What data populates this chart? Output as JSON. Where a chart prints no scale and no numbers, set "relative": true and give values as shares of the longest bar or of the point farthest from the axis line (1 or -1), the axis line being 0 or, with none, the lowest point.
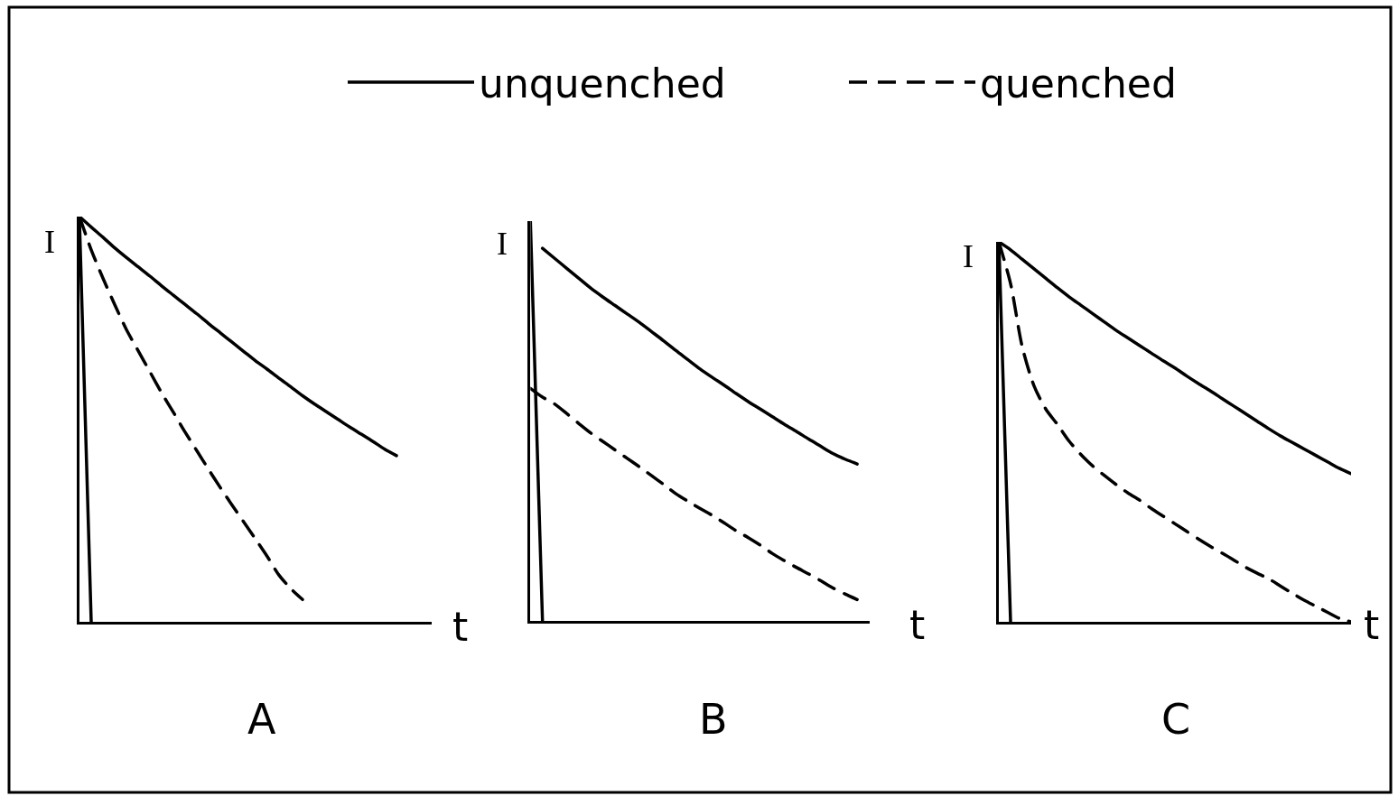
{
  "chart_data": [
    {
      "type": "line",
      "title": "A",
      "xlabel": "t",
      "ylabel": "I",
      "relative": true,
      "legend": "top",
      "categories": [
        null,
        null,
        null,
        null,
        null,
        null,
        null,
        null,
        null,
        null,
        null,
        null,
        null,
        null,
        null,
        null,
        null,
        null,
        null,
        null,
        null,
        null,
        null,
        null,
        null,
        null,
        null,
        null,
        null,
        null,
        null
      ],
      "series": [
        {
          "color": "#000000",
          "values": [
            0.99,
            0,
            null,
            null,
            null,
            null,
            null,
            null,
            null,
            null,
            null,
            null,
            null,
            null,
            null,
            null,
            null,
            null,
            null,
            null,
            null,
            null,
            null,
            null,
            null,
            null,
            null,
            null,
            null,
            null,
            null
          ]
        },
        {
          "name": "unquenched",
          "color": "#000000",
          "values": [
            1.0,
            0.974,
            0.949,
            0.923,
            0.899,
            0.876,
            0.853,
            0.829,
            0.806,
            0.783,
            0.76,
            0.736,
            0.713,
            0.69,
            0.667,
            0.644,
            0.623,
            0.601,
            0.58,
            0.558,
            0.538,
            0.519,
            0.5,
            0.481,
            0.463,
            0.445,
            0.426,
            0.41,
            null,
            null,
            null
          ]
        },
        {
          "name": "quenched",
          "color": "#000000",
          "line_style": "dashed",
          "values": [
            1.0,
            0.918,
            0.848,
            0.783,
            0.721,
            0.669,
            0.617,
            0.565,
            0.517,
            0.468,
            0.422,
            0.376,
            0.331,
            0.288,
            0.246,
            0.204,
            0.161,
            0.115,
            0.082,
            0.055,
            null,
            null,
            null,
            null,
            null,
            null,
            null,
            null,
            null,
            null,
            null
          ]
        }
      ]
    },
    {
      "type": "line",
      "title": "B",
      "xlabel": "t",
      "ylabel": "I",
      "relative": true,
      "legend": "top",
      "categories": [
        null,
        null,
        null,
        null,
        null,
        null,
        null,
        null,
        null,
        null,
        null,
        null,
        null,
        null,
        null,
        null,
        null,
        null,
        null,
        null,
        null,
        null,
        null,
        null,
        null,
        null,
        null,
        null,
        null
      ],
      "series": [
        {
          "color": "#000000",
          "values": [
            1.0,
            0,
            null,
            null,
            null,
            null,
            null,
            null,
            null,
            null,
            null,
            null,
            null,
            null,
            null,
            null,
            null,
            null,
            null,
            null,
            null,
            null,
            null,
            null,
            null,
            null,
            null,
            null,
            null
          ]
        },
        {
          "name": "unquenched",
          "color": "#000000",
          "values": [
            null,
            0.932,
            0.907,
            0.882,
            0.857,
            0.832,
            0.81,
            0.789,
            0.768,
            0.747,
            0.724,
            0.701,
            0.677,
            0.654,
            0.631,
            0.61,
            0.59,
            0.569,
            0.549,
            0.53,
            0.511,
            0.492,
            0.474,
            0.455,
            0.437,
            0.419,
            0.405,
            0.393,
            null
          ]
        },
        {
          "name": "quenched",
          "color": "#000000",
          "line_style": "dashed",
          "values": [
            0.582,
            0.56,
            0.543,
            0.519,
            0.494,
            0.47,
            0.449,
            0.428,
            0.407,
            0.386,
            0.364,
            0.342,
            0.319,
            0.3,
            0.282,
            0.265,
            0.246,
            0.226,
            0.209,
            0.19,
            0.169,
            0.151,
            0.134,
            0.118,
            0.101,
            0.083,
            0.068,
            0.054,
            null
          ]
        }
      ]
    },
    {
      "type": "line",
      "title": "C",
      "xlabel": "t",
      "ylabel": "I",
      "relative": true,
      "legend": "top",
      "categories": [
        null,
        null,
        null,
        null,
        null,
        null,
        null,
        null,
        null,
        null,
        null,
        null,
        null,
        null,
        null,
        null,
        null,
        null,
        null,
        null,
        null,
        null,
        null,
        null,
        null,
        null,
        null,
        null,
        null,
        null,
        null
      ],
      "series": [
        {
          "color": "#000000",
          "values": [
            1.0,
            0,
            null,
            null,
            null,
            null,
            null,
            null,
            null,
            null,
            null,
            null,
            null,
            null,
            null,
            null,
            null,
            null,
            null,
            null,
            null,
            null,
            null,
            null,
            null,
            null,
            null,
            null,
            null,
            null,
            null
          ]
        },
        {
          "name": "unquenched",
          "color": "#000000",
          "values": [
            1.0,
            0.979,
            0.954,
            0.929,
            0.904,
            0.879,
            0.855,
            0.833,
            0.811,
            0.789,
            0.767,
            0.747,
            0.727,
            0.707,
            0.687,
            0.668,
            0.647,
            0.627,
            0.608,
            0.588,
            0.568,
            0.548,
            0.528,
            0.508,
            0.489,
            0.472,
            0.455,
            0.438,
            0.421,
            0.404,
            0.39
          ]
        },
        {
          "name": "quenched",
          "color": "#000000",
          "line_style": "dashed",
          "values": [
            1.0,
            0.89,
            0.723,
            0.621,
            0.56,
            0.519,
            0.475,
            0.44,
            0.41,
            0.385,
            0.361,
            0.339,
            0.32,
            0.298,
            0.278,
            0.258,
            0.238,
            0.218,
            0.199,
            0.181,
            0.163,
            0.144,
            0.128,
            0.113,
            0.094,
            0.075,
            0.057,
            0.041,
            0.025,
            0.009,
            0
          ]
        }
      ]
    }
  ]
}
